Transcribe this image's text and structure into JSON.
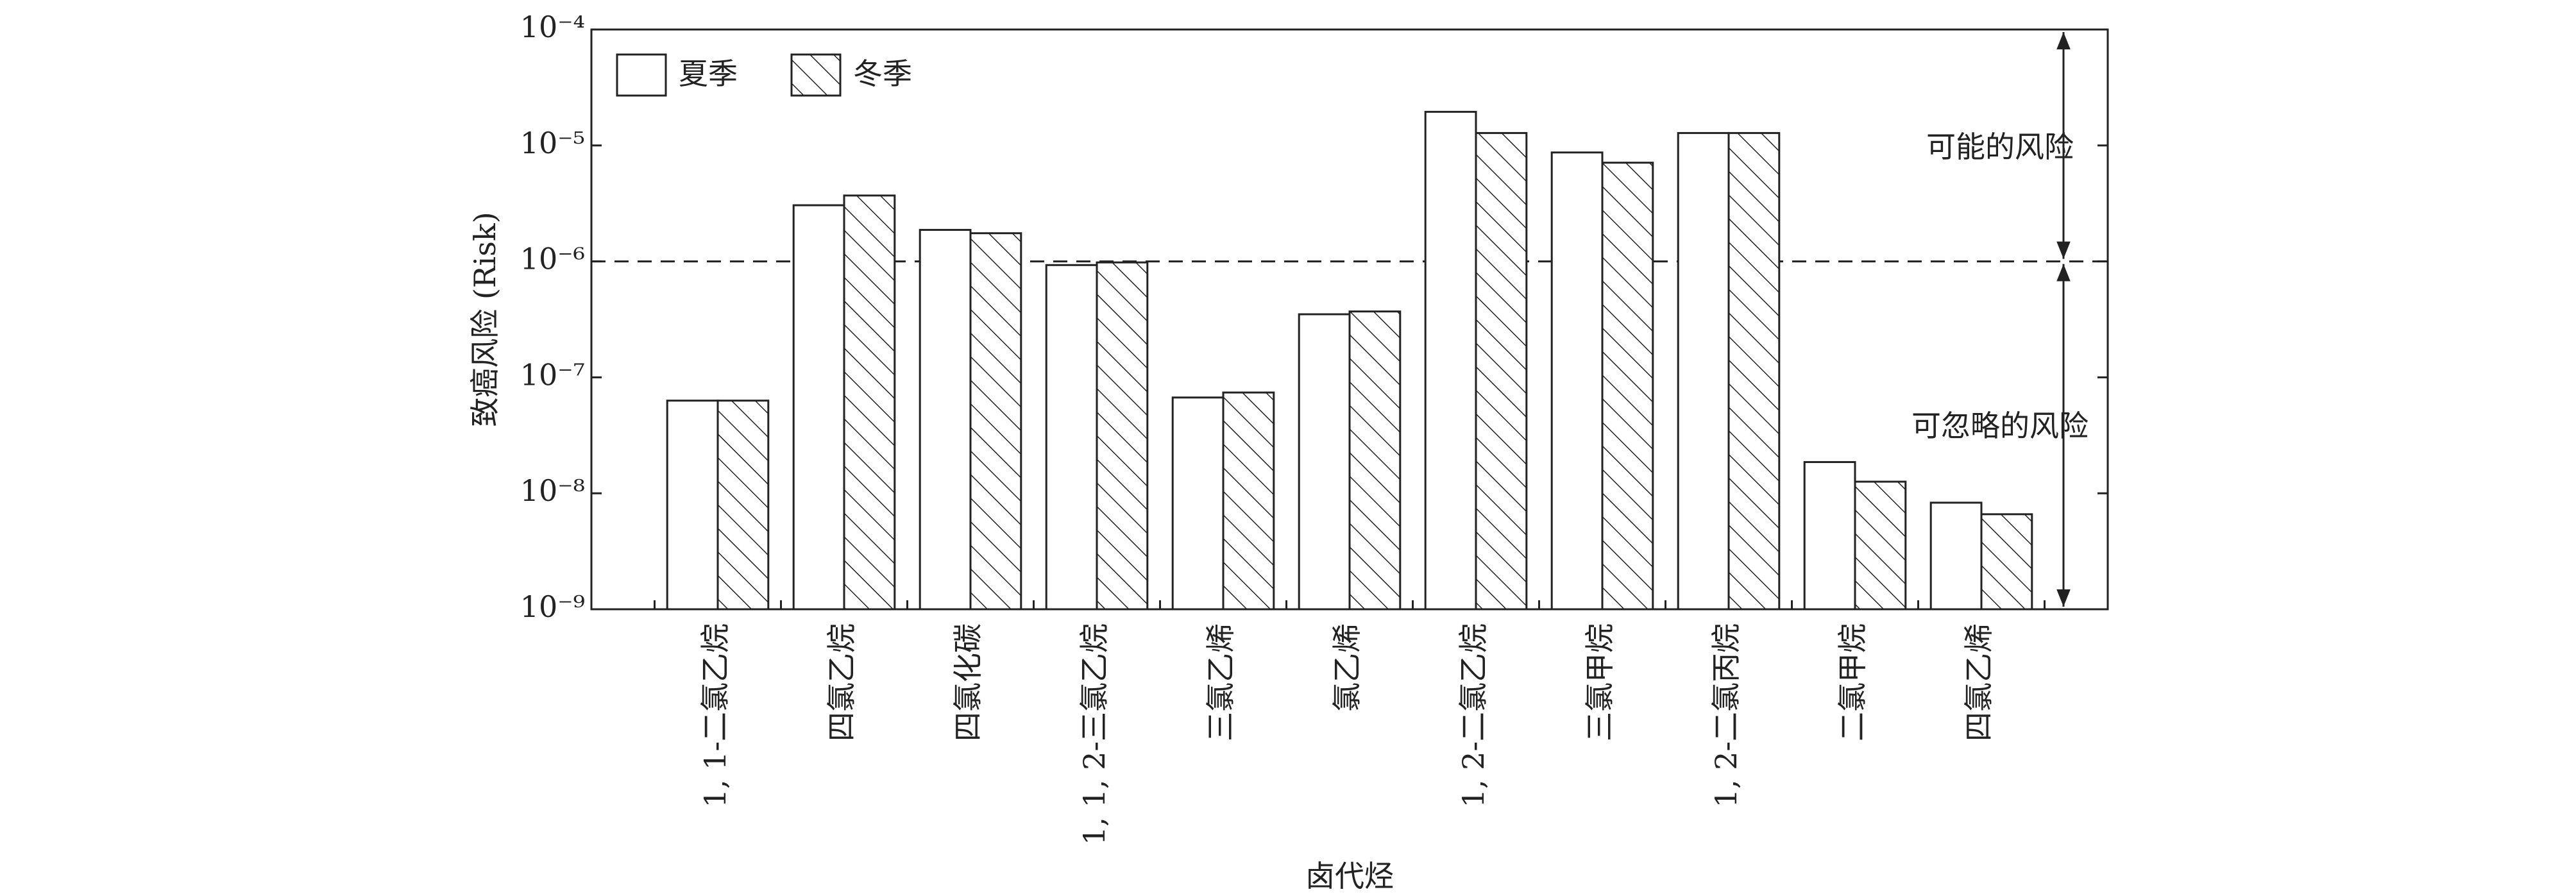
{
  "chart_data": {
    "type": "bar",
    "y_label": "致癌风险 (Risk)",
    "x_label": "卤代烃",
    "categories": [
      "1, 1-二氯乙烷",
      "四氯乙烷",
      "四氯化碳",
      "1, 1, 2-三氯乙烷",
      "三氯乙烯",
      "氯乙烯",
      "1, 2-二氯乙烷",
      "三氯甲烷",
      "1, 2-二氯丙烷",
      "二氯甲烷",
      "四氯乙烯"
    ],
    "series": [
      {
        "name": "夏季",
        "color": "#ffffff",
        "hatch": false,
        "values": [
          6.3e-08,
          3.05e-06,
          1.87e-06,
          9.3e-07,
          6.7e-08,
          3.5e-07,
          1.95e-05,
          8.7e-06,
          1.28e-05,
          1.86e-08,
          8.3e-09
        ]
      },
      {
        "name": "冬季",
        "color": "#ffffff",
        "hatch": true,
        "values": [
          6.3e-08,
          3.7e-06,
          1.75e-06,
          9.8e-07,
          7.4e-08,
          3.7e-07,
          1.28e-05,
          7.1e-06,
          1.28e-05,
          1.26e-08,
          6.6e-09
        ]
      }
    ],
    "log_scale": true,
    "ylim": [
      1e-09,
      0.0001
    ],
    "yticks": [
      {
        "value": 1e-09,
        "label": "10⁻⁹"
      },
      {
        "value": 1e-08,
        "label": "10⁻⁸"
      },
      {
        "value": 1e-07,
        "label": "10⁻⁷"
      },
      {
        "value": 1e-06,
        "label": "10⁻⁶"
      },
      {
        "value": 1e-05,
        "label": "10⁻⁵"
      },
      {
        "value": 0.0001,
        "label": "10⁻⁴"
      }
    ],
    "threshold": 1e-06,
    "annotations": [
      "可能的风险",
      "可忽略的风险"
    ],
    "legend": "upper left"
  }
}
